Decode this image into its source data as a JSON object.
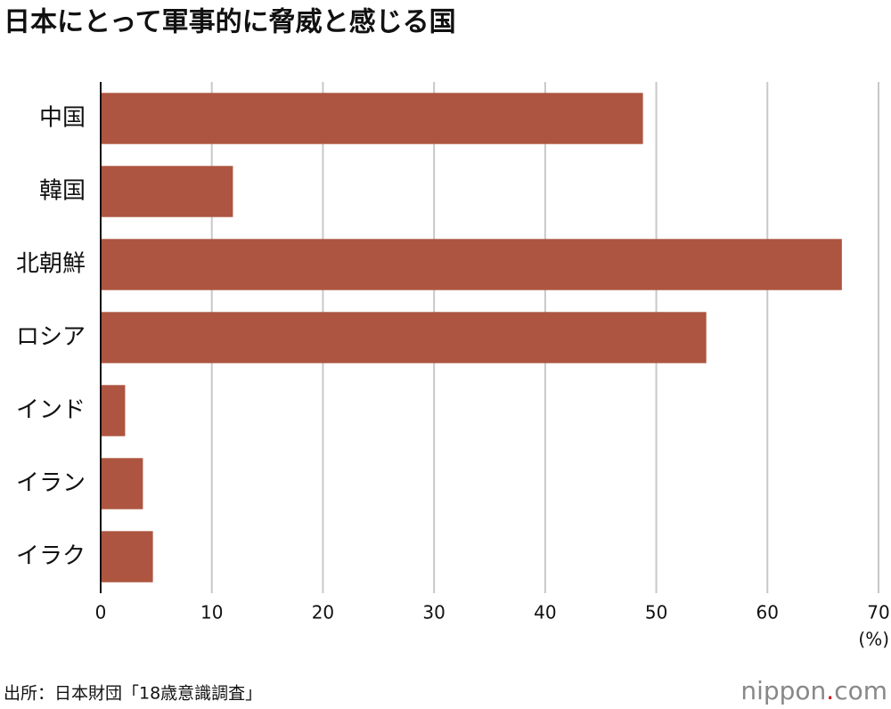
{
  "chart_data": {
    "type": "bar",
    "orientation": "horizontal",
    "title": "日本にとって軍事的に脅威と感じる国",
    "categories": [
      "中国",
      "韓国",
      "北朝鮮",
      "ロシア",
      "インド",
      "イラン",
      "イラク"
    ],
    "values": [
      48.8,
      11.9,
      66.7,
      54.5,
      2.2,
      3.8,
      4.7
    ],
    "color": "#ad5540",
    "xlim": [
      0,
      70
    ],
    "xticks": [
      0,
      10,
      20,
      30,
      40,
      50,
      60,
      70
    ],
    "x_unit": "(%)",
    "grid": true,
    "source": "出所：日本財団「18歳意識調査」",
    "logo": [
      "nippon",
      ".",
      "com"
    ]
  }
}
